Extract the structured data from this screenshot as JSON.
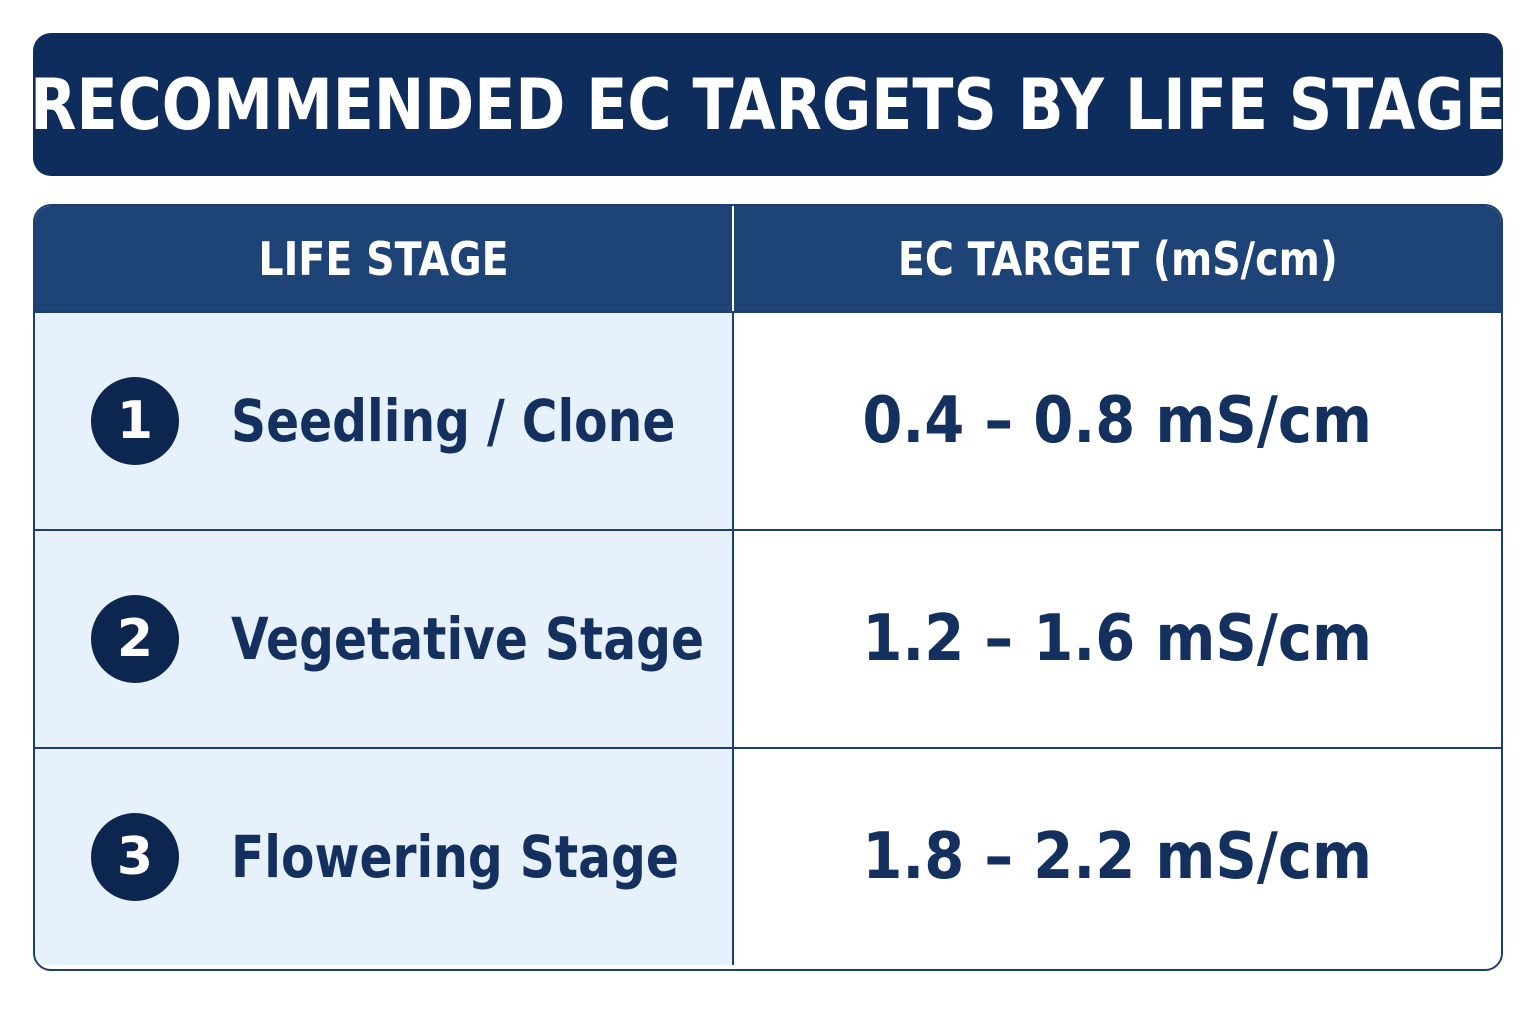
{
  "title": "RECOMMENDED EC TARGETS BY LIFE STAGE",
  "table": {
    "headers": [
      "LIFE STAGE",
      "EC TARGET (mS/cm)"
    ],
    "rows": [
      {
        "number": "1",
        "stage": "Seedling / Clone",
        "ec_target": "0.4 – 0.8 mS/cm"
      },
      {
        "number": "2",
        "stage": "Vegetative Stage",
        "ec_target": "1.2 – 1.6 mS/cm"
      },
      {
        "number": "3",
        "stage": "Flowering Stage",
        "ec_target": "1.8 – 2.2 mS/cm"
      }
    ]
  },
  "colors": {
    "title_banner": "#0f2d5c",
    "header_bg": "#1d4377",
    "stage_cell_bg": "#e6f1fc",
    "text_navy": "#13305e",
    "badge_bg": "#0d2650"
  }
}
